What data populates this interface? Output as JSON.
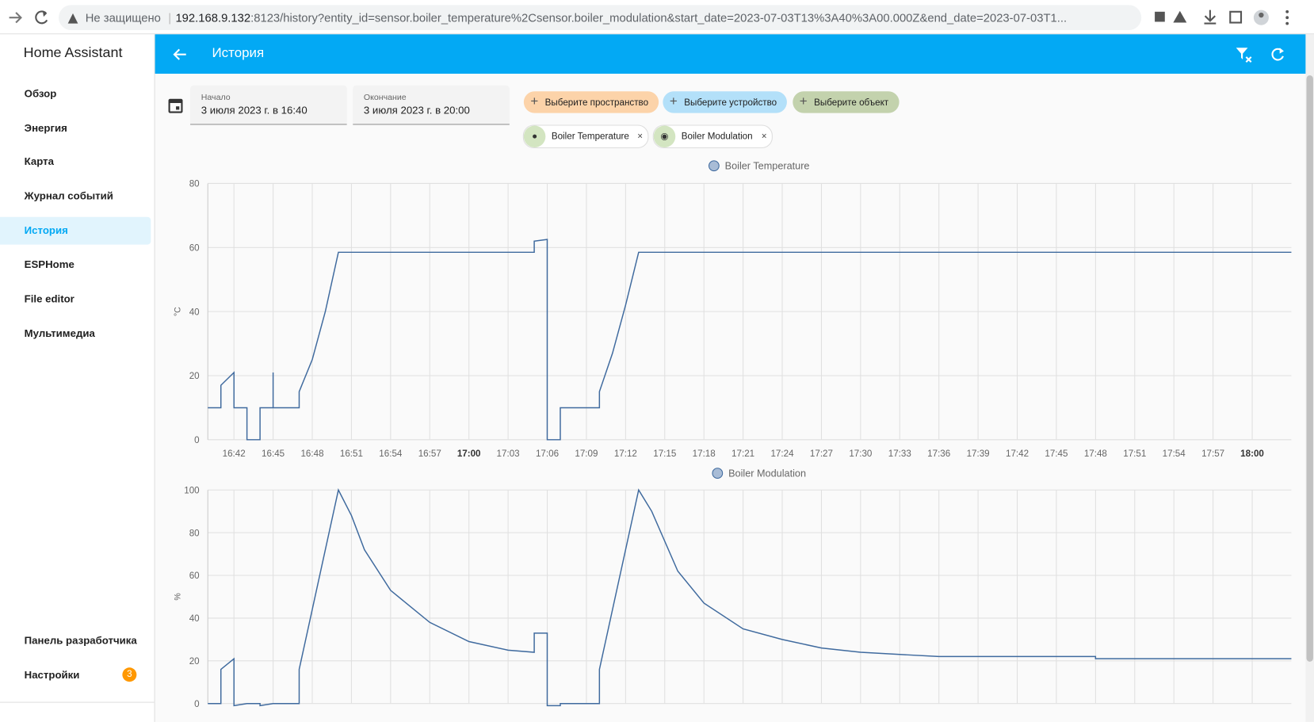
{
  "browser": {
    "security": "Не защищено",
    "url_host": "192.168.9.132",
    "url_rest": ":8123/history?entity_id=sensor.boiler_temperature%2Csensor.boiler_modulation&start_date=2023-07-03T13%3A40%3A00.000Z&end_date=2023-07-03T1..."
  },
  "sidebar": {
    "title": "Home Assistant",
    "items": [
      "Обзор",
      "Энергия",
      "Карта",
      "Журнал событий",
      "История",
      "ESPHome",
      "File editor",
      "Мультимедиа"
    ],
    "bottom_items": [
      "Панель разработчика",
      "Настройки"
    ],
    "badge": 3
  },
  "header": {
    "title": "История"
  },
  "date_range": {
    "start_label": "Начало",
    "start": "3 июля 2023 г. в 16:40",
    "end_label": "Окончание",
    "end": "3 июля 2023 г. в 20:00"
  },
  "pickers": [
    "Выберите пространство",
    "Выберите устройство",
    "Выберите объект"
  ],
  "entities": [
    "Boiler Temperature",
    "Boiler Modulation"
  ],
  "chart_data": [
    {
      "type": "line",
      "y_label": "°C",
      "grid": true,
      "xlim": [
        "16:40",
        "18:03"
      ],
      "xticks": [
        "16:42",
        "16:45",
        "16:48",
        "16:51",
        "16:54",
        "16:57",
        "17:00",
        "17:03",
        "17:06",
        "17:09",
        "17:12",
        "17:15",
        "17:18",
        "17:21",
        "17:24",
        "17:27",
        "17:30",
        "17:33",
        "17:36",
        "17:39",
        "17:42",
        "17:45",
        "17:48",
        "17:51",
        "17:54",
        "17:57",
        "18:00"
      ],
      "ylim": [
        0,
        80
      ],
      "yticks": [
        0,
        20,
        40,
        60,
        80
      ],
      "series": [
        {
          "name": "Boiler Temperature",
          "color": "#3f6a9e",
          "x": [
            "16:40",
            "16:41",
            "16:41",
            "16:42",
            "16:42",
            "16:43",
            "16:43",
            "16:44",
            "16:44",
            "16:45",
            "16:45",
            "16:45",
            "16:47",
            "16:47",
            "16:48",
            "16:49",
            "16:50",
            "17:05",
            "17:05",
            "17:06",
            "17:06",
            "17:07",
            "17:07",
            "17:10",
            "17:10",
            "17:11",
            "17:12",
            "17:13",
            "18:03"
          ],
          "values": [
            10,
            10,
            17,
            21,
            10,
            10,
            0,
            0,
            10,
            10,
            21,
            10,
            10,
            15,
            25,
            40,
            58.5,
            58.5,
            62,
            62.5,
            0,
            0,
            10,
            10,
            15,
            27,
            42,
            58.5,
            58.5
          ]
        }
      ]
    },
    {
      "type": "line",
      "y_label": "%",
      "grid": true,
      "xlim": [
        "16:40",
        "18:03"
      ],
      "xticks": [
        "16:42",
        "16:45",
        "16:48",
        "16:51",
        "16:54",
        "16:57",
        "17:00",
        "17:03",
        "17:06",
        "17:09",
        "17:12",
        "17:15",
        "17:18",
        "17:21",
        "17:24",
        "17:27",
        "17:30",
        "17:33",
        "17:36",
        "17:39",
        "17:42",
        "17:45",
        "17:48",
        "17:51",
        "17:54",
        "17:57",
        "18:00"
      ],
      "ylim": [
        0,
        100
      ],
      "yticks": [
        0,
        20,
        40,
        60,
        80,
        100
      ],
      "series": [
        {
          "name": "Boiler Modulation",
          "color": "#3f6a9e",
          "x": [
            "16:40",
            "16:41",
            "16:41",
            "16:42",
            "16:42",
            "16:43",
            "16:44",
            "16:44",
            "16:45",
            "16:47",
            "16:47",
            "16:50",
            "16:51",
            "16:52",
            "16:54",
            "16:57",
            "17:00",
            "17:03",
            "17:05",
            "17:05",
            "17:06",
            "17:06",
            "17:07",
            "17:07",
            "17:10",
            "17:10",
            "17:13",
            "17:14",
            "17:16",
            "17:18",
            "17:21",
            "17:24",
            "17:27",
            "17:30",
            "17:33",
            "17:36",
            "17:48",
            "17:48",
            "18:03"
          ],
          "values": [
            0,
            0,
            16,
            21,
            -1,
            0,
            0,
            -1,
            0,
            0,
            16,
            100,
            88,
            72,
            53,
            38,
            29,
            25,
            24,
            33,
            33,
            -1,
            -1,
            0,
            0,
            16,
            100,
            90,
            62,
            47,
            35,
            30,
            26,
            24,
            23,
            22,
            22,
            21,
            21
          ]
        }
      ]
    }
  ]
}
